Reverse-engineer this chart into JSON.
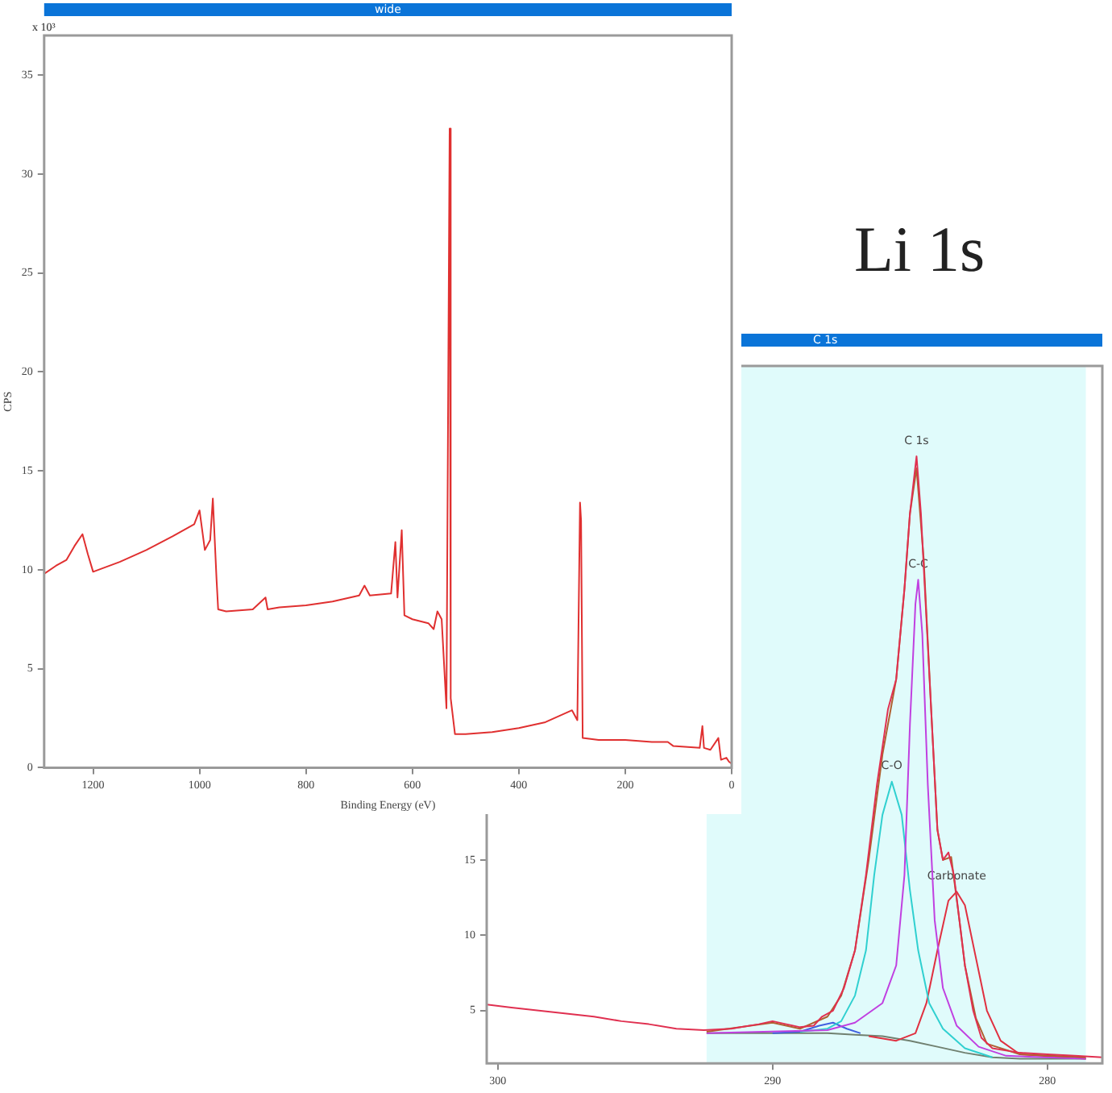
{
  "chart_data": [
    {
      "type": "line",
      "title": "wide",
      "xlabel": "Binding Energy (eV)",
      "ylabel": "CPS",
      "annotations": [
        "x 10³"
      ],
      "xlim": [
        1292,
        0
      ],
      "xticks": [
        1200,
        1000,
        800,
        600,
        400,
        200,
        0
      ],
      "ylim": [
        0,
        37
      ],
      "yticks": [
        0,
        5,
        10,
        15,
        20,
        25,
        30,
        35
      ],
      "grid": false,
      "series": [
        {
          "color": "#e03030",
          "x": [
            1292,
            1270,
            1250,
            1235,
            1220,
            1210,
            1200,
            1150,
            1100,
            1050,
            1010,
            1000,
            990,
            980,
            975,
            968,
            965,
            950,
            900,
            876,
            872,
            850,
            800,
            750,
            700,
            690,
            680,
            640,
            632,
            628,
            620,
            615,
            600,
            570,
            560,
            553,
            545,
            536,
            531,
            530,
            528,
            520,
            500,
            450,
            400,
            350,
            300,
            290,
            285,
            283,
            280,
            250,
            200,
            150,
            120,
            110,
            60,
            55,
            52,
            40,
            25,
            20,
            10,
            5,
            0
          ],
          "values": [
            9.8,
            10.2,
            10.5,
            11.2,
            11.8,
            10.8,
            9.9,
            10.4,
            11.0,
            11.7,
            12.3,
            13.0,
            11.0,
            11.5,
            13.6,
            9.5,
            8.0,
            7.9,
            8.0,
            8.6,
            8.0,
            8.1,
            8.2,
            8.4,
            8.7,
            9.2,
            8.7,
            8.8,
            11.4,
            8.6,
            12.0,
            7.7,
            7.5,
            7.3,
            7.0,
            7.9,
            7.5,
            3.0,
            27.5,
            32.3,
            3.5,
            1.7,
            1.7,
            1.8,
            2.0,
            2.3,
            2.9,
            2.4,
            13.4,
            12.5,
            1.5,
            1.4,
            1.4,
            1.3,
            1.3,
            1.1,
            1.0,
            2.1,
            1.0,
            0.9,
            1.5,
            0.4,
            0.5,
            0.3,
            0.2
          ]
        }
      ]
    },
    {
      "type": "line",
      "title": "C 1s",
      "annotations": [
        "Li 1s",
        {
          "text": "C 1s",
          "x": 284.76,
          "y": 41.8
        },
        {
          "text": "C-C",
          "x": 284.7,
          "y": 33.6
        },
        {
          "text": "C-O",
          "x": 285.66,
          "y": 20.2
        },
        {
          "text": "Carbonate",
          "x": 283.3,
          "y": 12.9
        }
      ],
      "xlim": [
        300.4,
        278
      ],
      "xticks": [
        300,
        290,
        280
      ],
      "ylim": [
        1.5,
        47.8
      ],
      "yticks": [
        5,
        10,
        15
      ],
      "grid": false,
      "bands": [
        {
          "axis": "x",
          "from": 292.4,
          "to": 278.6,
          "color": "#e0fbfb"
        }
      ],
      "series": [
        {
          "color": "#e03050",
          "x": [
            300.4,
            299.5,
            298.5,
            297.5,
            296.5,
            295.5,
            294.5,
            293.5,
            292.5,
            291.5,
            290.5,
            290,
            289.5,
            289,
            288.5,
            288.2,
            287.8,
            287.4,
            287,
            286.6,
            286.2,
            285.8,
            285.5,
            285.2,
            285,
            284.76,
            284.6,
            284.4,
            284.2,
            284,
            283.8,
            283.6,
            283.4,
            283.2,
            283,
            282.7,
            282.4,
            282,
            281,
            280,
            279,
            278
          ],
          "values": [
            5.4,
            5.2,
            5.0,
            4.8,
            4.6,
            4.3,
            4.1,
            3.8,
            3.7,
            3.8,
            4.1,
            4.3,
            4.1,
            3.9,
            4.0,
            4.6,
            5.0,
            6.5,
            9,
            14,
            20,
            25,
            27,
            33,
            38,
            41.8,
            38,
            31,
            24,
            17,
            15,
            15.5,
            14,
            11,
            8,
            5,
            3.2,
            2.5,
            2.2,
            2.1,
            2.0,
            1.9
          ]
        },
        {
          "color": "#b06030",
          "x": [
            292.4,
            290,
            289,
            288,
            287.5,
            287,
            286.5,
            286,
            285.5,
            285.2,
            285,
            284.76,
            284.5,
            284.2,
            284,
            283.8,
            283.5,
            283.2,
            283,
            282.6,
            282.2,
            281,
            278.6
          ],
          "values": [
            3.6,
            4.2,
            3.8,
            4.6,
            6,
            9,
            15,
            22,
            27,
            33,
            38,
            41,
            35,
            24,
            17,
            15,
            15.2,
            11,
            8,
            4.5,
            2.8,
            2.1,
            1.9
          ]
        },
        {
          "color": "#c040e0",
          "x": [
            292.4,
            288,
            287,
            286,
            285.5,
            285.2,
            285,
            284.8,
            284.7,
            284.55,
            284.35,
            284.1,
            283.8,
            283.3,
            282.5,
            281.5,
            278.6
          ],
          "values": [
            3.5,
            3.7,
            4.2,
            5.5,
            8,
            14,
            24,
            32,
            33.6,
            30,
            20,
            11,
            6.5,
            4,
            2.6,
            2.0,
            1.8
          ]
        },
        {
          "color": "#30d0d0",
          "x": [
            289,
            288,
            287.5,
            287,
            286.6,
            286.3,
            286,
            285.66,
            285.3,
            285,
            284.7,
            284.3,
            283.8,
            283,
            282
          ],
          "values": [
            3.6,
            3.8,
            4.3,
            6,
            9,
            14,
            18,
            20.2,
            18,
            13,
            9,
            5.5,
            3.8,
            2.5,
            1.9
          ]
        },
        {
          "color": "#e03040",
          "x": [
            286.5,
            285.5,
            284.8,
            284.4,
            284,
            283.6,
            283.3,
            283,
            282.6,
            282.2,
            281.7,
            281,
            278.6
          ],
          "values": [
            3.3,
            3.0,
            3.5,
            5.5,
            9,
            12.3,
            12.9,
            12,
            8.5,
            5,
            3,
            2.1,
            1.8
          ]
        },
        {
          "color": "#4060e0",
          "x": [
            290,
            289,
            288.3,
            287.8,
            287.3,
            286.8
          ],
          "values": [
            3.5,
            3.6,
            4.0,
            4.2,
            3.8,
            3.5
          ]
        },
        {
          "color": "#708070",
          "x": [
            292.4,
            290,
            288,
            287,
            286,
            285,
            284,
            283,
            282,
            281,
            278.6
          ],
          "values": [
            3.5,
            3.5,
            3.5,
            3.4,
            3.3,
            3.0,
            2.6,
            2.2,
            1.9,
            1.8,
            1.8
          ]
        }
      ]
    }
  ]
}
